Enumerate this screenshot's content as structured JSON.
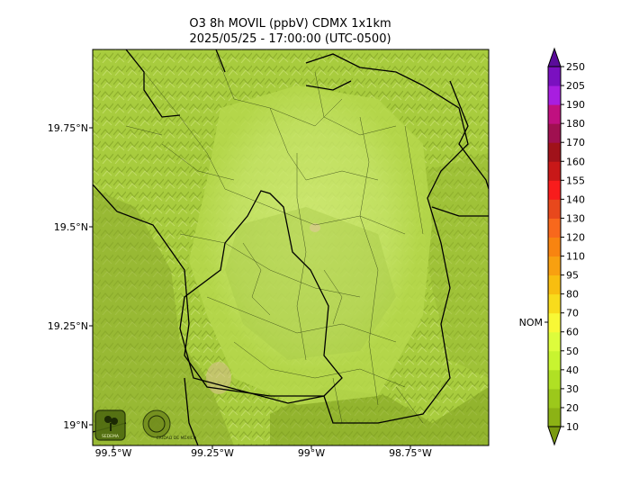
{
  "title": "O3 8h MOVIL (ppbV) CDMX 1x1km",
  "subtitle": "2025/05/25 - 17:00:00 (UTC-0500)",
  "map": {
    "lat_labels": [
      "19.75°N",
      "19.5°N",
      "19.25°N",
      "19°N"
    ],
    "lon_labels": [
      "99.5°W",
      "99.25°W",
      "99°W",
      "98.75°W"
    ]
  },
  "colorbar": {
    "ticks": [
      "10",
      "20",
      "30",
      "40",
      "50",
      "60",
      "70",
      "80",
      "95",
      "110",
      "120",
      "130",
      "140",
      "155",
      "160",
      "170",
      "180",
      "190",
      "205",
      "250"
    ],
    "colors": [
      "#7a9a10",
      "#8cb215",
      "#9cc81b",
      "#b0e024",
      "#c8f430",
      "#ddfc3c",
      "#f8f836",
      "#f8dc1c",
      "#f8be10",
      "#f8a010",
      "#f88410",
      "#f8681c",
      "#e8481c",
      "#f81c1c",
      "#c81818",
      "#a0121a",
      "#a01050",
      "#c01080",
      "#a81ee0",
      "#7a10c0",
      "#5a0c9a"
    ],
    "nom_label": "NOM",
    "nom_value": 65
  },
  "logos": {
    "left": "SEDEMA",
    "right": "CIUDAD DE MÉXICO"
  },
  "colors": {
    "field_base": "#bfe05a",
    "field_dark": "#86a626",
    "border": "#000000"
  }
}
